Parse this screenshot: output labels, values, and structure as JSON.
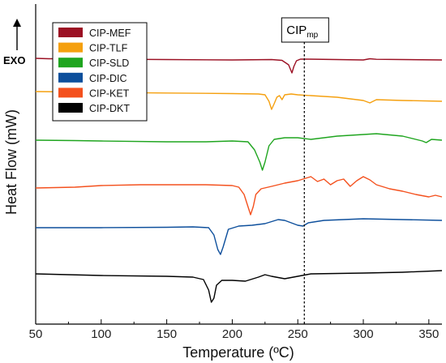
{
  "chart_data": {
    "type": "line",
    "title": "",
    "xlabel": "Temperature (ºC)",
    "ylabel": "Heat Flow (mW)",
    "xlim": [
      50,
      360
    ],
    "xticks": [
      50,
      100,
      150,
      200,
      250,
      300,
      350
    ],
    "yticks_shown": false,
    "exo_label": "EXO",
    "exo_direction": "up",
    "legend_position": "top-left",
    "annotation": {
      "text_main": "CIP",
      "text_sub": "mp",
      "x": 255,
      "style": "dotted-vertical-line"
    },
    "series": [
      {
        "name": "CIP-MEF",
        "color": "#9b1023",
        "points": [
          [
            50,
            72
          ],
          [
            60,
            72.5
          ],
          [
            80,
            72.5
          ],
          [
            100,
            73
          ],
          [
            120,
            73.2
          ],
          [
            150,
            73.5
          ],
          [
            200,
            74
          ],
          [
            230,
            73.5
          ],
          [
            238,
            74.5
          ],
          [
            243,
            80
          ],
          [
            245.5,
            90
          ],
          [
            247,
            82
          ],
          [
            249,
            75
          ],
          [
            252,
            73
          ],
          [
            258,
            73
          ],
          [
            280,
            73.5
          ],
          [
            300,
            74
          ],
          [
            305,
            72.5
          ],
          [
            310,
            73.2
          ],
          [
            330,
            73.5
          ],
          [
            360,
            74
          ]
        ]
      },
      {
        "name": "CIP-TLF",
        "color": "#f5a00f",
        "points": [
          [
            50,
            113
          ],
          [
            80,
            113.5
          ],
          [
            100,
            114
          ],
          [
            150,
            114.8
          ],
          [
            200,
            115.5
          ],
          [
            220,
            116
          ],
          [
            225,
            117
          ],
          [
            228,
            125
          ],
          [
            230,
            135
          ],
          [
            232,
            128
          ],
          [
            234,
            120
          ],
          [
            236,
            118
          ],
          [
            238,
            123
          ],
          [
            240,
            117
          ],
          [
            245,
            116
          ],
          [
            250,
            117
          ],
          [
            260,
            118
          ],
          [
            280,
            120
          ],
          [
            300,
            124
          ],
          [
            305,
            127
          ],
          [
            310,
            123
          ],
          [
            330,
            124
          ],
          [
            360,
            125
          ]
        ]
      },
      {
        "name": "CIP-SLD",
        "color": "#1fa51f",
        "points": [
          [
            50,
            173
          ],
          [
            80,
            173.5
          ],
          [
            100,
            174
          ],
          [
            150,
            175
          ],
          [
            180,
            175
          ],
          [
            200,
            174
          ],
          [
            212,
            175
          ],
          [
            217,
            185
          ],
          [
            221,
            200
          ],
          [
            223,
            210
          ],
          [
            225,
            200
          ],
          [
            228,
            180
          ],
          [
            232,
            172
          ],
          [
            240,
            170
          ],
          [
            250,
            170
          ],
          [
            260,
            172
          ],
          [
            280,
            168
          ],
          [
            300,
            166
          ],
          [
            310,
            165
          ],
          [
            330,
            168
          ],
          [
            345,
            174
          ],
          [
            348,
            176
          ],
          [
            352,
            172
          ],
          [
            360,
            173
          ]
        ]
      },
      {
        "name": "CIP-DIC",
        "color": "#0d4f9c",
        "points": [
          [
            50,
            281
          ],
          [
            100,
            281
          ],
          [
            150,
            280.5
          ],
          [
            170,
            280
          ],
          [
            182,
            281
          ],
          [
            186,
            290
          ],
          [
            189,
            308
          ],
          [
            191,
            314
          ],
          [
            193,
            305
          ],
          [
            197,
            283
          ],
          [
            205,
            279
          ],
          [
            215,
            278
          ],
          [
            225,
            276
          ],
          [
            235,
            271
          ],
          [
            240,
            272
          ],
          [
            250,
            278
          ],
          [
            254,
            279
          ],
          [
            258,
            275
          ],
          [
            270,
            272
          ],
          [
            300,
            270
          ],
          [
            330,
            271
          ],
          [
            360,
            272
          ]
        ]
      },
      {
        "name": "CIP-KET",
        "color": "#f4511e",
        "points": [
          [
            50,
            232
          ],
          [
            80,
            231
          ],
          [
            100,
            229
          ],
          [
            130,
            228
          ],
          [
            150,
            228
          ],
          [
            180,
            228
          ],
          [
            200,
            229
          ],
          [
            205,
            231
          ],
          [
            209,
            240
          ],
          [
            212,
            255
          ],
          [
            214,
            265
          ],
          [
            216,
            255
          ],
          [
            218,
            240
          ],
          [
            222,
            233
          ],
          [
            230,
            230
          ],
          [
            240,
            226
          ],
          [
            250,
            223
          ],
          [
            260,
            218
          ],
          [
            265,
            224
          ],
          [
            270,
            221
          ],
          [
            275,
            228
          ],
          [
            280,
            223
          ],
          [
            285,
            221
          ],
          [
            290,
            230
          ],
          [
            295,
            223
          ],
          [
            300,
            218
          ],
          [
            305,
            222
          ],
          [
            310,
            228
          ],
          [
            320,
            233
          ],
          [
            330,
            236
          ],
          [
            340,
            240
          ],
          [
            350,
            243
          ],
          [
            355,
            241
          ],
          [
            360,
            243
          ]
        ]
      },
      {
        "name": "CIP-DKT",
        "color": "#000000",
        "points": [
          [
            50,
            338
          ],
          [
            100,
            340
          ],
          [
            150,
            341
          ],
          [
            170,
            342
          ],
          [
            178,
            345
          ],
          [
            182,
            358
          ],
          [
            184,
            373
          ],
          [
            186,
            368
          ],
          [
            188,
            352
          ],
          [
            192,
            346
          ],
          [
            200,
            346
          ],
          [
            210,
            347
          ],
          [
            220,
            342
          ],
          [
            225,
            339
          ],
          [
            230,
            341
          ],
          [
            240,
            344
          ],
          [
            250,
            341
          ],
          [
            260,
            338
          ],
          [
            300,
            337
          ],
          [
            330,
            336
          ],
          [
            360,
            334
          ]
        ]
      }
    ]
  }
}
